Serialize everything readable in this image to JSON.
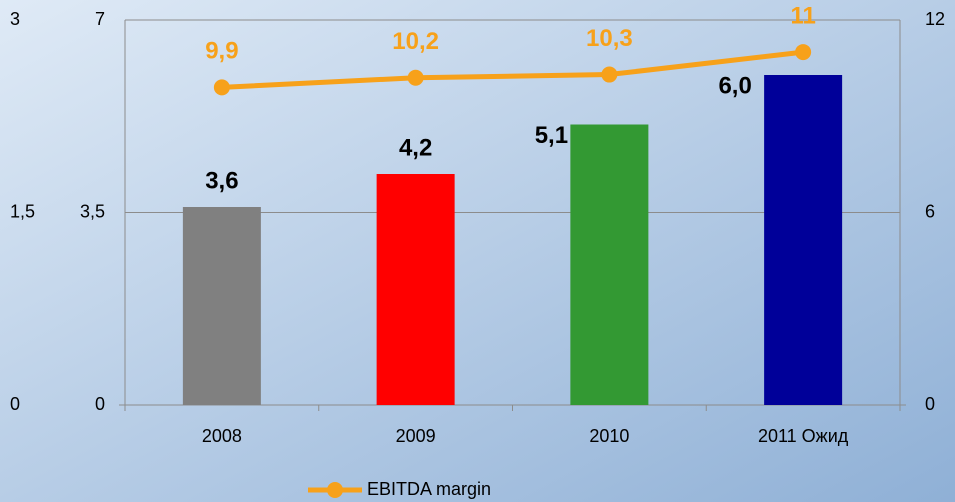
{
  "chart_data": {
    "type": "combo",
    "categories": [
      "2008",
      "2009",
      "2010",
      "2011 Ожид"
    ],
    "series": [
      {
        "type": "bar",
        "colors": [
          "#808080",
          "#ff0000",
          "#339933",
          "#000099"
        ],
        "values": [
          3.6,
          4.2,
          5.1,
          6.0
        ],
        "value_labels": [
          "3,6",
          "4,2",
          "5,1",
          "6,0"
        ]
      },
      {
        "type": "line",
        "name": "EBITDA margin",
        "color": "#f7a11a",
        "axis": "y2",
        "values": [
          9.9,
          10.2,
          10.3,
          11
        ],
        "value_labels": [
          "9,9",
          "10,2",
          "10,3",
          "11"
        ]
      }
    ],
    "ylim": [
      0,
      7
    ],
    "yticks": [
      0,
      {
        "value": 3.5,
        "label": "3,5"
      },
      7
    ],
    "y2lim": [
      0,
      12
    ],
    "y2ticks": [
      0,
      6,
      12
    ],
    "y3lim": [
      0,
      3
    ],
    "y3ticks": [
      0,
      {
        "value": 1.5,
        "label": "1,5"
      },
      3
    ],
    "grid": true,
    "legend": "bottom"
  }
}
